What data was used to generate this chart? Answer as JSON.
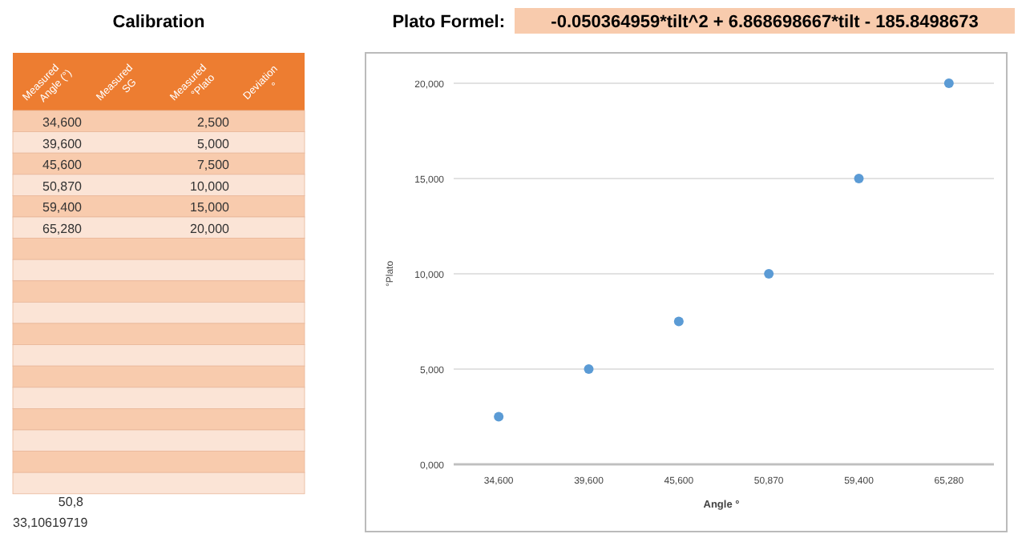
{
  "chart_data": {
    "type": "scatter",
    "title": "Calibration",
    "xlabel": "Angle °",
    "ylabel": "°Plato",
    "annotations": [
      "Plato Formel:",
      "-0.050364959*tilt^2 + 6.868698667*tilt - 185.8498673",
      "Measured Angle (°)",
      "Measured SG",
      "Measured °Plato",
      "Deviation °",
      "50,8",
      "33,10619719",
      "2,500",
      "5,000",
      "7,500",
      "10,000",
      "15,000",
      "20,000"
    ],
    "categories": [
      "34,600",
      "39,600",
      "45,600",
      "50,870",
      "59,400",
      "65,280"
    ],
    "series": [
      {
        "color": "#5b9bd5",
        "values": [
          2.5,
          5,
          7.5,
          10,
          15,
          20
        ]
      }
    ],
    "ylim": [
      0,
      20
    ],
    "yticks": [
      {
        "value": 0,
        "label": "0,000"
      },
      {
        "value": 5,
        "label": "5,000"
      },
      {
        "value": 10,
        "label": "10,000"
      },
      {
        "value": 15,
        "label": "15,000"
      },
      {
        "value": 20,
        "label": "20,000"
      }
    ],
    "grid": "y",
    "marker": "circle"
  }
}
